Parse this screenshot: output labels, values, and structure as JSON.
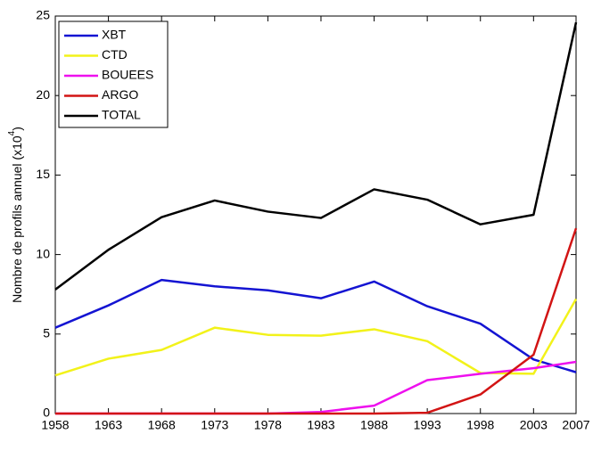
{
  "chart_data": {
    "type": "line",
    "ylabel": [
      "Nombre de profils annuel (x10",
      "4",
      ")"
    ],
    "x": [
      1958,
      1963,
      1968,
      1973,
      1978,
      1983,
      1988,
      1993,
      1998,
      2003,
      2007
    ],
    "series": [
      {
        "name": "XBT",
        "color": "#1414d2",
        "values": [
          5.4,
          6.8,
          8.4,
          8.0,
          7.75,
          7.25,
          8.3,
          6.75,
          5.65,
          3.4,
          2.6
        ]
      },
      {
        "name": "CTD",
        "color": "#f2f21a",
        "values": [
          2.4,
          3.45,
          4.0,
          5.4,
          4.95,
          4.9,
          5.3,
          4.55,
          2.55,
          2.5,
          7.2
        ]
      },
      {
        "name": "BOUEES",
        "color": "#ee10ee",
        "values": [
          0,
          0,
          0,
          0,
          0,
          0.1,
          0.5,
          2.1,
          2.5,
          2.85,
          3.25
        ]
      },
      {
        "name": "ARGO",
        "color": "#d21414",
        "values": [
          0,
          0,
          0,
          0,
          0,
          0,
          0,
          0.05,
          1.2,
          3.7,
          11.65
        ]
      },
      {
        "name": "TOTAL",
        "color": "#000000",
        "values": [
          7.8,
          10.3,
          12.35,
          13.4,
          12.7,
          12.3,
          14.1,
          13.45,
          11.9,
          12.5,
          24.6
        ]
      }
    ],
    "xlim": [
      1958,
      2007
    ],
    "xticks": [
      1958,
      1963,
      1968,
      1973,
      1978,
      1983,
      1988,
      1993,
      1998,
      2003,
      2007
    ],
    "ylim": [
      0,
      25
    ],
    "yticks": [
      0,
      5,
      10,
      15,
      20,
      25
    ],
    "grid": false,
    "legend": "upper-left"
  }
}
